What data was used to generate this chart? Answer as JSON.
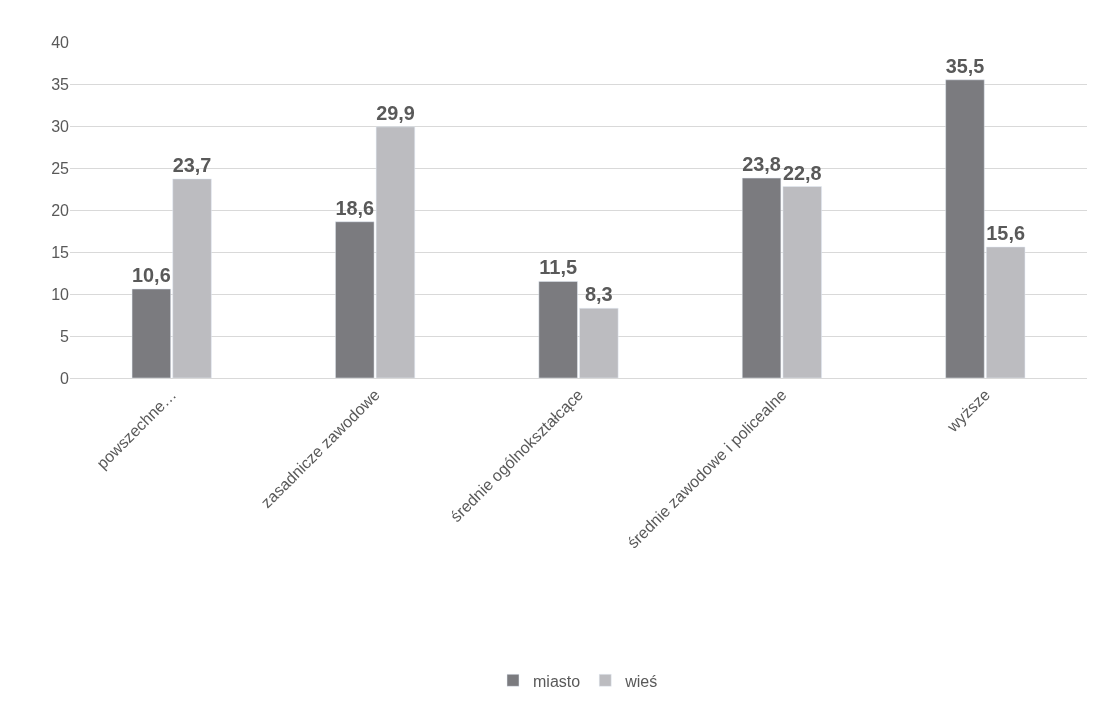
{
  "chart_data": {
    "type": "bar",
    "categories": [
      "powszechne…",
      "zasadnicze zawodowe",
      "średnie ogólnokształcące",
      "średnie zawodowe i policealne",
      "wyższe"
    ],
    "series": [
      {
        "name": "miasto",
        "color": "#7b7b7f",
        "values": [
          10.6,
          18.6,
          11.5,
          23.8,
          35.5
        ],
        "value_labels": [
          "10,6",
          "18,6",
          "11,5",
          "23,8",
          "35,5"
        ]
      },
      {
        "name": "wieś",
        "color": "#bcbcc0",
        "values": [
          23.7,
          29.9,
          8.3,
          22.8,
          15.6
        ],
        "value_labels": [
          "23,7",
          "29,9",
          "8,3",
          "22,8",
          "15,6"
        ]
      }
    ],
    "ylim": [
      0,
      40
    ],
    "yticks": [
      0,
      5,
      10,
      15,
      20,
      25,
      30,
      35,
      40
    ],
    "grid": "y",
    "legend": "bottom"
  }
}
